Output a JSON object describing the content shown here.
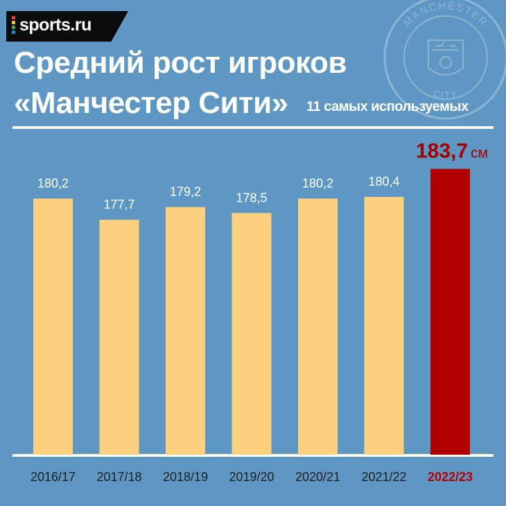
{
  "brand": {
    "name": "sports.ru",
    "dot_colors": [
      "#e53935",
      "#fbc02d",
      "#43a047",
      "#1e88e5"
    ]
  },
  "header": {
    "title_line1": "Средний рост игроков",
    "title_line2": "«Манчестер Сити»",
    "subtitle": "11 самых используемых"
  },
  "badge": {
    "top_text": "MANCHESTER",
    "bottom_text": "CITY"
  },
  "colors": {
    "background": "#5f97c4",
    "bar": "#fdd07f",
    "highlight_bar": "#b20000",
    "highlight_label": "#a30000",
    "text": "#ffffff",
    "tick_text": "#1e1e1e"
  },
  "chart_data": {
    "type": "bar",
    "categories": [
      "2016/17",
      "2017/18",
      "2018/19",
      "2019/20",
      "2020/21",
      "2021/22",
      "2022/23"
    ],
    "values": [
      180.2,
      177.7,
      179.2,
      178.5,
      180.2,
      180.4,
      183.7
    ],
    "value_labels": [
      "180,2",
      "177,7",
      "179,2",
      "178,5",
      "180,2",
      "180,4",
      "183,7"
    ],
    "highlight_index": 6,
    "highlight_unit": "см",
    "ylim": [
      150,
      184
    ],
    "grid": false,
    "legend": "none"
  }
}
